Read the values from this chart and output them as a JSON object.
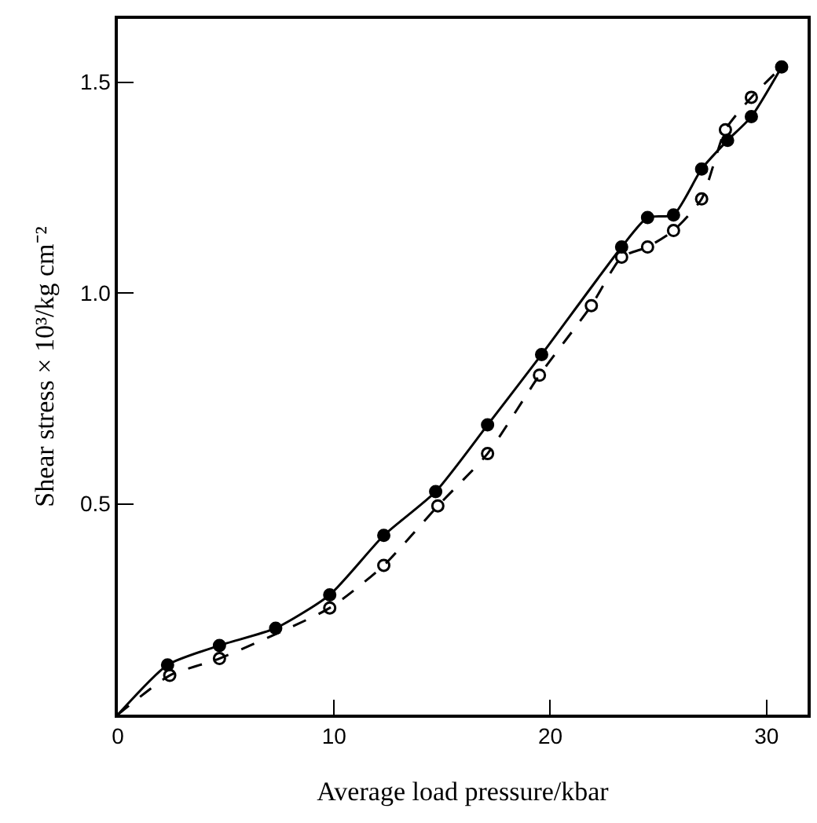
{
  "chart_data": {
    "type": "scatter",
    "xlabel": "Average load pressure/kbar",
    "ylabel": "Shear stress × 10³/kg cm⁻²",
    "xlim": [
      0,
      31.9
    ],
    "ylim": [
      0,
      1.65
    ],
    "xticks": [
      0,
      10,
      20,
      30
    ],
    "yticks": [
      {
        "value": 0.5,
        "label": "0.5"
      },
      {
        "value": 1.0,
        "label": "1.0"
      },
      1.5
    ],
    "series": [
      {
        "type": "line",
        "color": "#000000",
        "line_style": "solid",
        "marker": "none",
        "x": [
          0,
          2.3,
          4.7,
          7.3,
          9.8,
          12.3,
          14.7,
          17.1,
          19.6,
          23.3,
          24.5,
          25.7,
          27.0,
          28.2,
          29.3,
          30.7
        ],
        "values": [
          0,
          0.118,
          0.164,
          0.205,
          0.284,
          0.425,
          0.529,
          0.687,
          0.854,
          1.109,
          1.179,
          1.185,
          1.294,
          1.362,
          1.418,
          1.536
        ]
      },
      {
        "type": "line",
        "color": "#000000",
        "line_style": "dashed",
        "marker": "none",
        "x": [
          0,
          2.4,
          4.7,
          9.8,
          12.3,
          14.8,
          17.1,
          19.5,
          21.9,
          23.3,
          24.5,
          25.7,
          27.0,
          28.1,
          29.3,
          30.7
        ],
        "values": [
          0,
          0.093,
          0.133,
          0.253,
          0.354,
          0.495,
          0.619,
          0.805,
          0.97,
          1.085,
          1.109,
          1.148,
          1.223,
          1.387,
          1.464,
          1.536
        ]
      },
      {
        "color": "#000000",
        "marker": "circle",
        "x": [
          2.3,
          4.7,
          7.3,
          9.8,
          12.3,
          14.7,
          17.1,
          19.6,
          23.3,
          24.5,
          25.7,
          27.0,
          28.2,
          29.3,
          30.7
        ],
        "values": [
          0.118,
          0.164,
          0.205,
          0.284,
          0.425,
          0.529,
          0.687,
          0.854,
          1.109,
          1.179,
          1.185,
          1.294,
          1.362,
          1.418,
          1.536
        ]
      },
      {
        "color": "#000000",
        "marker": "circle-open",
        "x": [
          2.4,
          4.7,
          9.8,
          12.3,
          14.8,
          17.1,
          19.5,
          21.9,
          23.3,
          24.5,
          25.7,
          27.0,
          28.1,
          29.3
        ],
        "values": [
          0.093,
          0.133,
          0.253,
          0.354,
          0.495,
          0.619,
          0.805,
          0.97,
          1.085,
          1.109,
          1.148,
          1.223,
          1.387,
          1.464
        ]
      }
    ]
  }
}
